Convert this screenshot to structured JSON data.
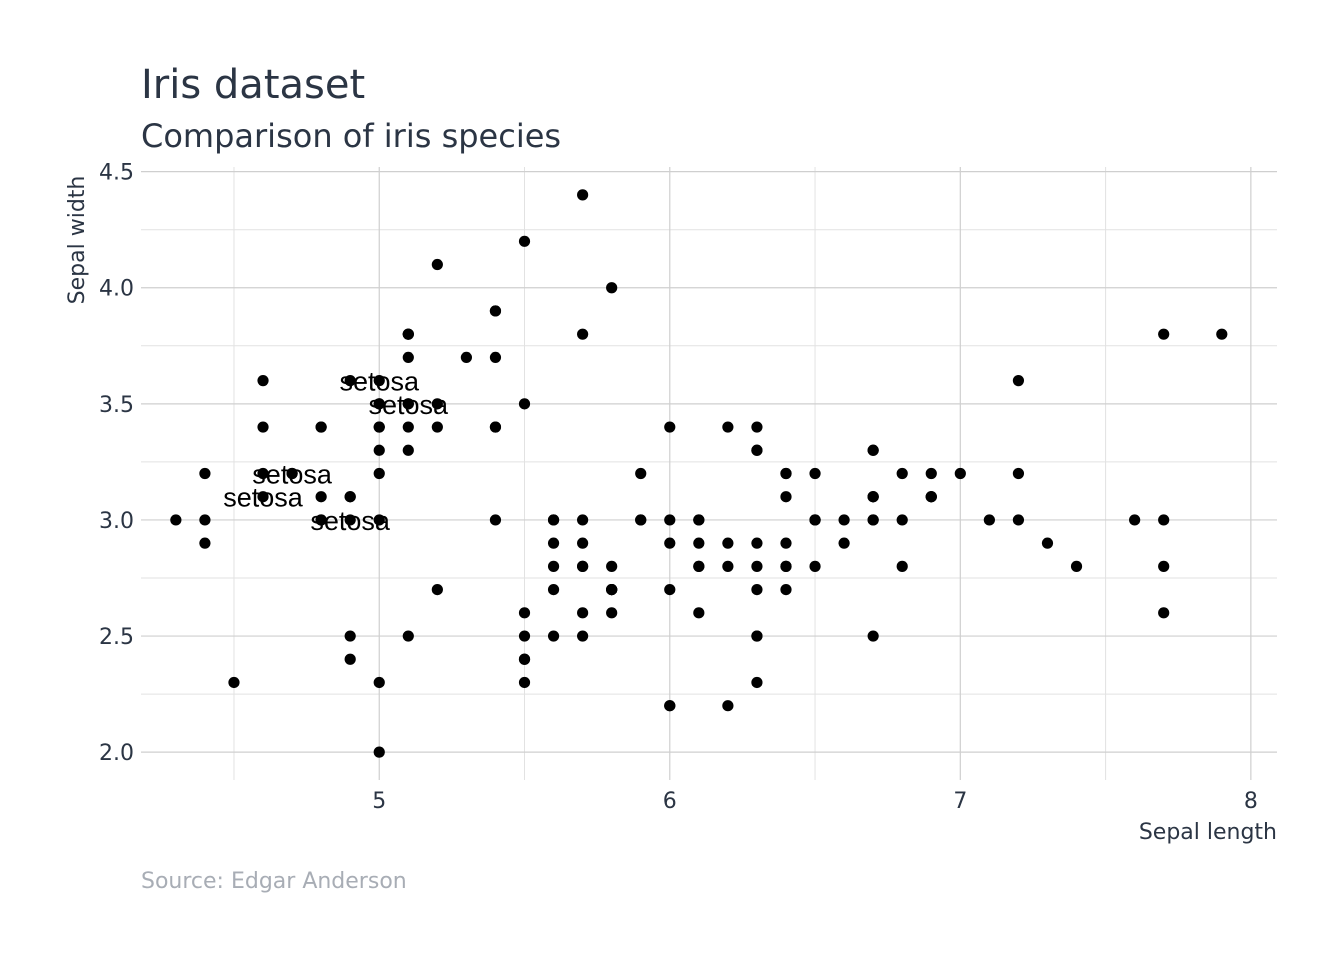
{
  "chart_data": {
    "type": "scatter",
    "title": "Iris dataset",
    "subtitle": "Comparison of iris species",
    "caption": "Source: Edgar Anderson",
    "xlabel": "Sepal length",
    "ylabel": "Sepal width",
    "xlim": [
      4.18,
      8.09
    ],
    "ylim": [
      1.88,
      4.52
    ],
    "x_ticks": [
      5,
      6,
      7,
      8
    ],
    "x_tick_labels": [
      "5",
      "6",
      "7",
      "8"
    ],
    "y_ticks": [
      2.0,
      2.5,
      3.0,
      3.5,
      4.0,
      4.5
    ],
    "y_tick_labels": [
      "2.0",
      "2.5",
      "3.0",
      "3.5",
      "4.0",
      "4.5"
    ],
    "grid": true,
    "legend": "none",
    "colors": {
      "points": "#000000",
      "text": "#2b3544",
      "caption": "#a8adb5",
      "grid": "#cfcfcf"
    },
    "points": [
      [
        5.1,
        3.5
      ],
      [
        4.9,
        3.0
      ],
      [
        4.7,
        3.2
      ],
      [
        4.6,
        3.1
      ],
      [
        5.0,
        3.6
      ],
      [
        5.4,
        3.9
      ],
      [
        4.6,
        3.4
      ],
      [
        5.0,
        3.4
      ],
      [
        4.4,
        2.9
      ],
      [
        4.9,
        3.1
      ],
      [
        5.4,
        3.7
      ],
      [
        4.8,
        3.4
      ],
      [
        4.8,
        3.0
      ],
      [
        4.3,
        3.0
      ],
      [
        5.8,
        4.0
      ],
      [
        5.7,
        4.4
      ],
      [
        5.4,
        3.9
      ],
      [
        5.1,
        3.5
      ],
      [
        5.7,
        3.8
      ],
      [
        5.1,
        3.8
      ],
      [
        5.4,
        3.4
      ],
      [
        5.1,
        3.7
      ],
      [
        4.6,
        3.6
      ],
      [
        5.1,
        3.3
      ],
      [
        4.8,
        3.4
      ],
      [
        5.0,
        3.0
      ],
      [
        5.0,
        3.4
      ],
      [
        5.2,
        3.5
      ],
      [
        5.2,
        3.4
      ],
      [
        4.7,
        3.2
      ],
      [
        4.8,
        3.1
      ],
      [
        5.4,
        3.4
      ],
      [
        5.2,
        4.1
      ],
      [
        5.5,
        4.2
      ],
      [
        4.9,
        3.1
      ],
      [
        5.0,
        3.2
      ],
      [
        5.5,
        3.5
      ],
      [
        4.9,
        3.6
      ],
      [
        4.4,
        3.0
      ],
      [
        5.1,
        3.4
      ],
      [
        5.0,
        3.5
      ],
      [
        4.5,
        2.3
      ],
      [
        4.4,
        3.2
      ],
      [
        5.0,
        3.5
      ],
      [
        5.1,
        3.8
      ],
      [
        4.8,
        3.0
      ],
      [
        5.1,
        3.8
      ],
      [
        4.6,
        3.2
      ],
      [
        5.3,
        3.7
      ],
      [
        5.0,
        3.3
      ],
      [
        7.0,
        3.2
      ],
      [
        6.4,
        3.2
      ],
      [
        6.9,
        3.1
      ],
      [
        5.5,
        2.3
      ],
      [
        6.5,
        2.8
      ],
      [
        5.7,
        2.8
      ],
      [
        6.3,
        3.3
      ],
      [
        4.9,
        2.4
      ],
      [
        6.6,
        2.9
      ],
      [
        5.2,
        2.7
      ],
      [
        5.0,
        2.0
      ],
      [
        5.9,
        3.0
      ],
      [
        6.0,
        2.2
      ],
      [
        6.1,
        2.9
      ],
      [
        5.6,
        2.9
      ],
      [
        6.7,
        3.1
      ],
      [
        5.6,
        3.0
      ],
      [
        5.8,
        2.7
      ],
      [
        6.2,
        2.2
      ],
      [
        5.6,
        2.5
      ],
      [
        5.9,
        3.2
      ],
      [
        6.1,
        2.8
      ],
      [
        6.3,
        2.5
      ],
      [
        6.1,
        2.8
      ],
      [
        6.4,
        2.9
      ],
      [
        6.6,
        3.0
      ],
      [
        6.8,
        2.8
      ],
      [
        6.7,
        3.0
      ],
      [
        6.0,
        2.9
      ],
      [
        5.7,
        2.6
      ],
      [
        5.5,
        2.4
      ],
      [
        5.5,
        2.4
      ],
      [
        5.8,
        2.7
      ],
      [
        6.0,
        2.7
      ],
      [
        5.4,
        3.0
      ],
      [
        6.0,
        3.4
      ],
      [
        6.7,
        3.1
      ],
      [
        6.3,
        2.3
      ],
      [
        5.6,
        3.0
      ],
      [
        5.5,
        2.5
      ],
      [
        5.5,
        2.6
      ],
      [
        6.1,
        3.0
      ],
      [
        5.8,
        2.6
      ],
      [
        5.0,
        2.3
      ],
      [
        5.6,
        2.7
      ],
      [
        5.7,
        3.0
      ],
      [
        5.7,
        2.9
      ],
      [
        6.2,
        2.9
      ],
      [
        5.1,
        2.5
      ],
      [
        5.7,
        2.8
      ],
      [
        6.3,
        3.3
      ],
      [
        5.8,
        2.7
      ],
      [
        7.1,
        3.0
      ],
      [
        6.3,
        2.9
      ],
      [
        6.5,
        3.0
      ],
      [
        7.6,
        3.0
      ],
      [
        4.9,
        2.5
      ],
      [
        7.3,
        2.9
      ],
      [
        6.7,
        2.5
      ],
      [
        7.2,
        3.6
      ],
      [
        6.5,
        3.2
      ],
      [
        6.4,
        2.7
      ],
      [
        6.8,
        3.0
      ],
      [
        5.7,
        2.5
      ],
      [
        5.8,
        2.8
      ],
      [
        6.4,
        3.2
      ],
      [
        6.5,
        3.0
      ],
      [
        7.7,
        3.8
      ],
      [
        7.7,
        2.6
      ],
      [
        6.0,
        2.2
      ],
      [
        6.9,
        3.2
      ],
      [
        5.6,
        2.8
      ],
      [
        7.7,
        2.8
      ],
      [
        6.3,
        2.7
      ],
      [
        6.7,
        3.3
      ],
      [
        7.2,
        3.2
      ],
      [
        6.2,
        2.8
      ],
      [
        6.1,
        3.0
      ],
      [
        6.4,
        2.8
      ],
      [
        7.2,
        3.0
      ],
      [
        7.4,
        2.8
      ],
      [
        7.9,
        3.8
      ],
      [
        6.4,
        2.8
      ],
      [
        6.3,
        2.8
      ],
      [
        6.1,
        2.6
      ],
      [
        7.7,
        3.0
      ],
      [
        6.3,
        3.4
      ],
      [
        6.4,
        3.1
      ],
      [
        6.0,
        3.0
      ],
      [
        6.9,
        3.1
      ],
      [
        6.7,
        3.1
      ],
      [
        6.9,
        3.1
      ],
      [
        5.8,
        2.7
      ],
      [
        6.8,
        3.2
      ],
      [
        6.7,
        3.3
      ],
      [
        6.7,
        3.0
      ],
      [
        6.3,
        2.5
      ],
      [
        6.5,
        3.0
      ],
      [
        6.2,
        3.4
      ],
      [
        5.9,
        3.0
      ]
    ],
    "annotations": [
      {
        "text": "setosa",
        "x": 5.0,
        "y": 3.6
      },
      {
        "text": "setosa",
        "x": 5.1,
        "y": 3.5
      },
      {
        "text": "setosa",
        "x": 4.7,
        "y": 3.2
      },
      {
        "text": "setosa",
        "x": 4.6,
        "y": 3.1
      },
      {
        "text": "setosa",
        "x": 4.9,
        "y": 3.0
      }
    ]
  }
}
